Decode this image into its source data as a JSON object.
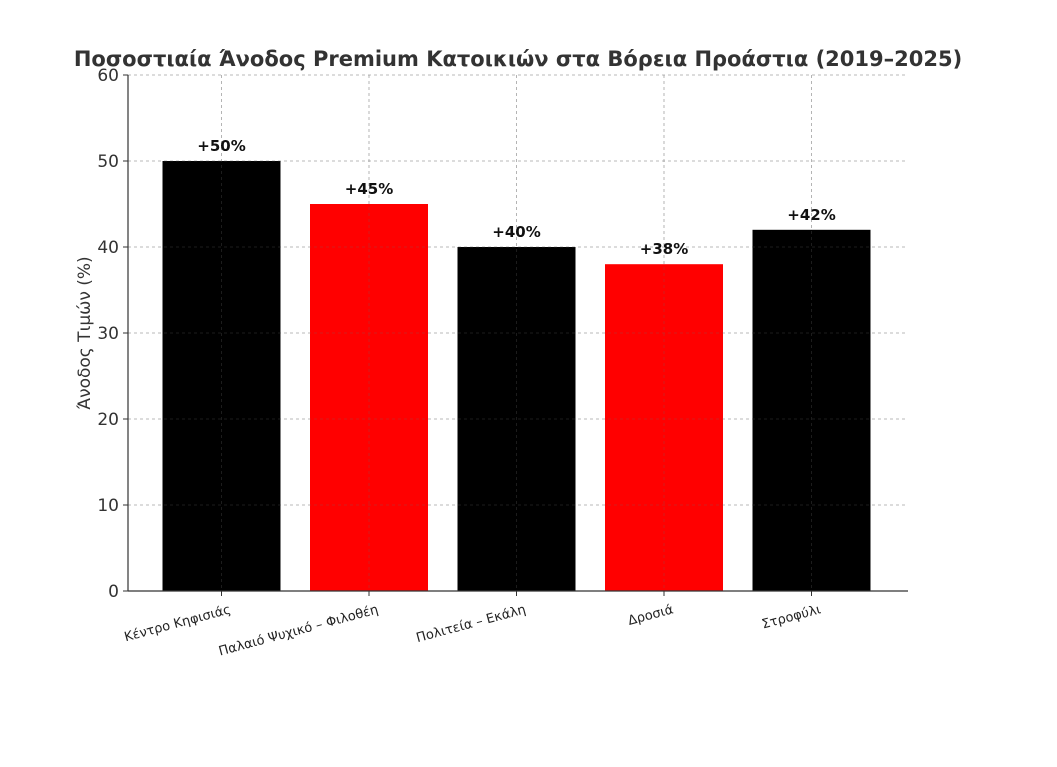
{
  "chart_data": {
    "type": "bar",
    "title": "Ποσοστιαία Άνοδος Premium Κατοικιών στα Βόρεια Προάστια (2019–2025)",
    "xlabel": "",
    "ylabel": "Άνοδος Τιμών (%)",
    "ylim": [
      0,
      60
    ],
    "yticks": [
      0,
      10,
      20,
      30,
      40,
      50,
      60
    ],
    "grid": true,
    "categories": [
      "Κέντρο Κηφισιάς",
      "Παλαιό Ψυχικό – Φιλοθέη",
      "Πολιτεία – Εκάλη",
      "Δροσιά",
      "Στροφύλι"
    ],
    "values": [
      50,
      45,
      40,
      38,
      42
    ],
    "data_labels": [
      "+50%",
      "+45%",
      "+40%",
      "+38%",
      "+42%"
    ],
    "colors": [
      "#000000",
      "#ff0000",
      "#000000",
      "#ff0000",
      "#000000"
    ]
  }
}
